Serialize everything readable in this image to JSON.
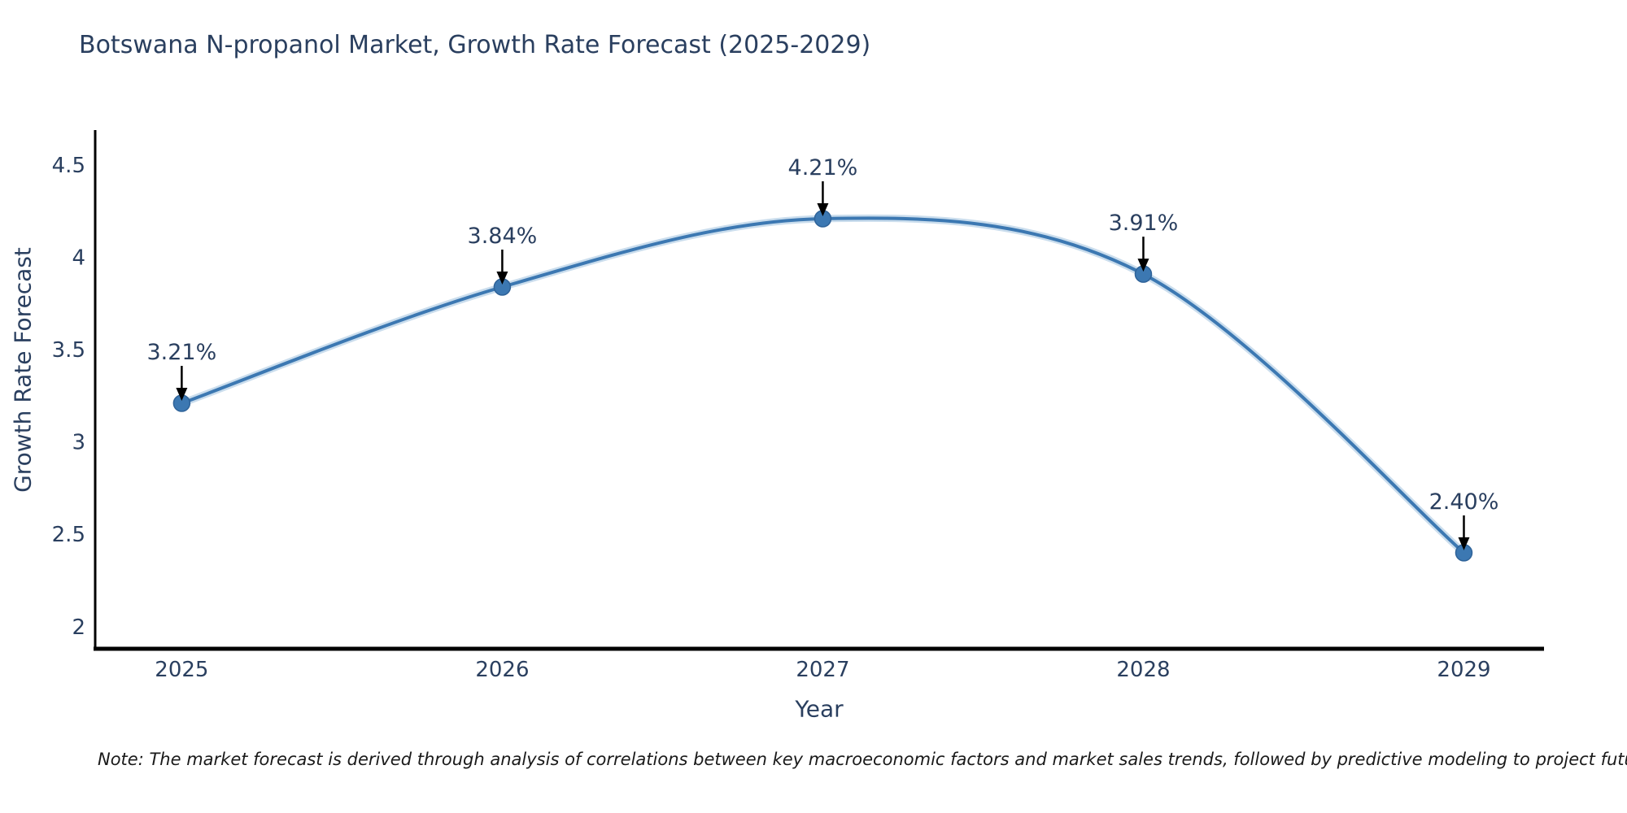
{
  "chart_data": {
    "type": "line",
    "title": "Botswana N-propanol Market, Growth Rate Forecast (2025-2029)",
    "xlabel": "Year",
    "ylabel": "Growth Rate Forecast",
    "x": [
      2025,
      2026,
      2027,
      2028,
      2029
    ],
    "series": [
      {
        "name": "Growth Rate Forecast",
        "values": [
          3.21,
          3.84,
          4.21,
          3.91,
          2.4
        ],
        "point_labels": [
          "3.21%",
          "3.84%",
          "4.21%",
          "3.91%",
          "2.40%"
        ]
      }
    ],
    "xticks": [
      "2025",
      "2026",
      "2027",
      "2028",
      "2029"
    ],
    "yticks": [
      "2",
      "2.5",
      "3",
      "3.5",
      "4",
      "4.5"
    ],
    "ytick_values": [
      2,
      2.5,
      3,
      3.5,
      4,
      4.5
    ],
    "xlim": [
      2024.73,
      2029.25
    ],
    "ylim": [
      1.88,
      4.69
    ],
    "grid": false,
    "legend": false,
    "line_shape": "spline",
    "annotation_style": "value label above point with downward black arrow",
    "colors": {
      "line": "#3c78b2",
      "line_halo": "#8ab4d8",
      "marker_fill": "#3c78b2",
      "marker_edge": "#2f6399",
      "axis_line": "#000000",
      "arrow": "#000000",
      "title_text": "#2a3f5f",
      "tick_text": "#2a3f5f",
      "annotation_text": "#2a3f5f",
      "note_text": "#1a1a1a",
      "background": "#ffffff"
    }
  },
  "note": "Note: The market forecast is derived through analysis of correlations between key macroeconomic factors and market sales trends, followed by predictive modeling to project future sales"
}
